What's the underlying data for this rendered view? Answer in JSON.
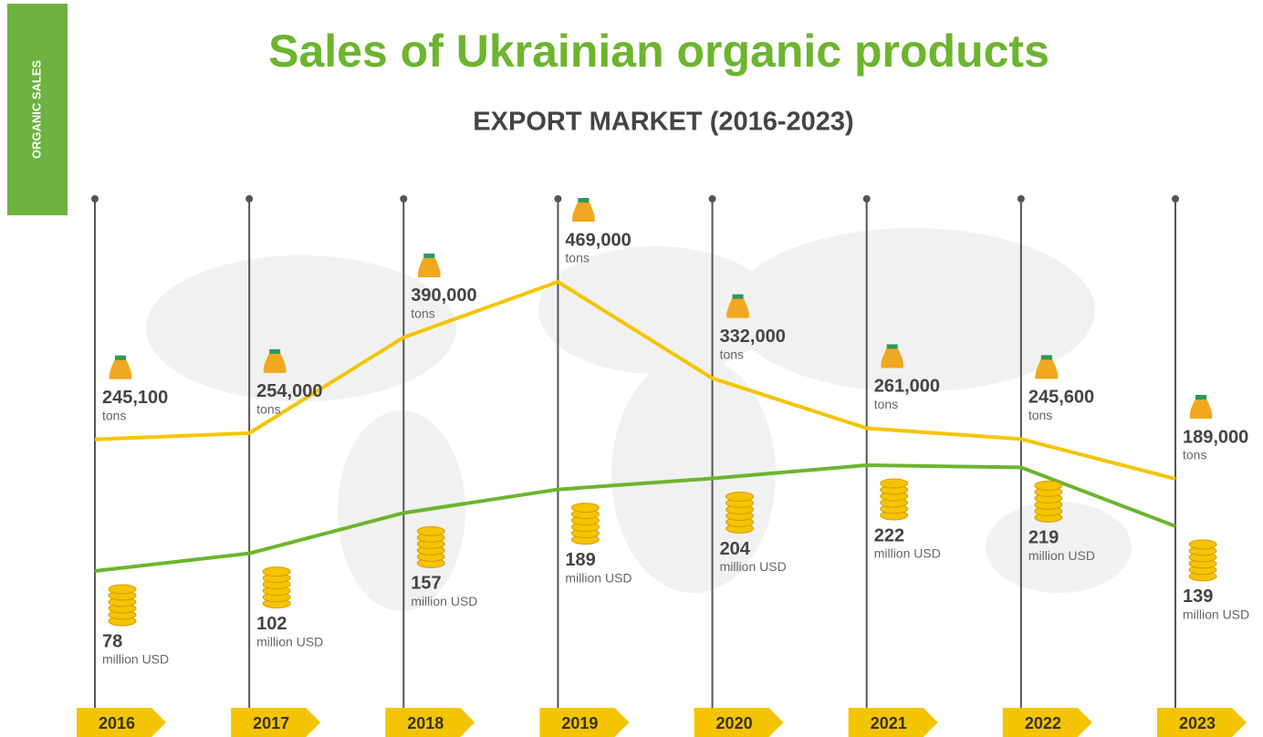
{
  "chart_data": {
    "type": "line",
    "side_label": "ORGANIC SALES",
    "title": "Sales of Ukrainian organic products",
    "subtitle": "EXPORT MARKET (2016-2023)",
    "categories": [
      "2016",
      "2017",
      "2018",
      "2019",
      "2020",
      "2021",
      "2022",
      "2023"
    ],
    "series": [
      {
        "name": "tons",
        "unit": "tons",
        "color": "#f5c400",
        "values": [
          245100,
          254000,
          390000,
          469000,
          332000,
          261000,
          245600,
          189000
        ],
        "value_labels": [
          "245,100",
          "254,000",
          "390,000",
          "469,000",
          "332,000",
          "261,000",
          "245,600",
          "189,000"
        ]
      },
      {
        "name": "million USD",
        "unit": "million USD",
        "color": "#6cb52d",
        "values": [
          78,
          102,
          157,
          189,
          204,
          222,
          219,
          139
        ]
      }
    ]
  }
}
